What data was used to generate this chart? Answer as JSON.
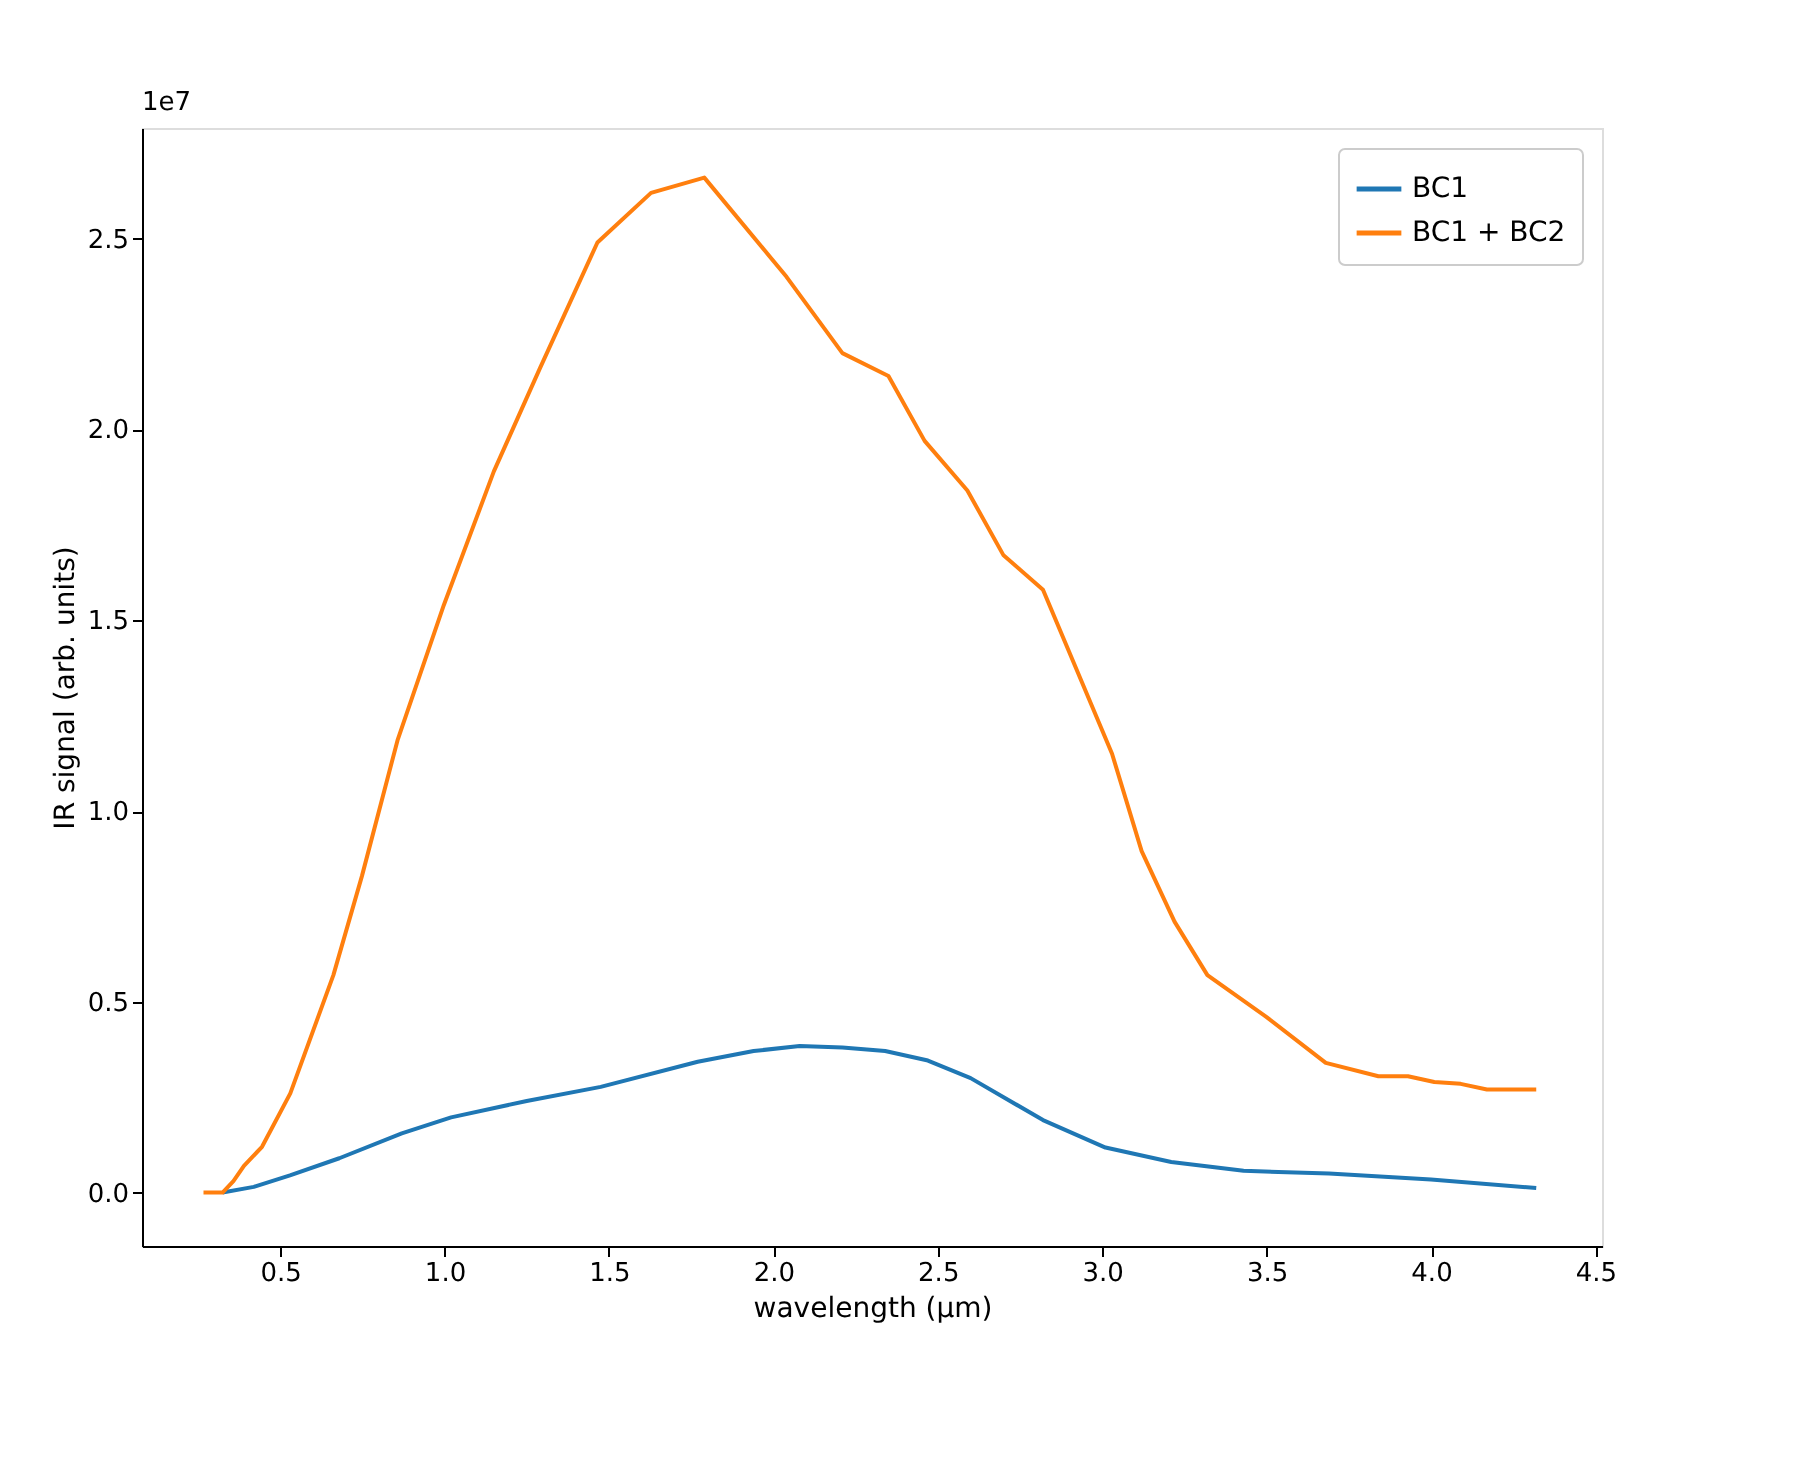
{
  "chart_data": {
    "type": "line",
    "xlabel": "wavelength (μm)",
    "ylabel": "IR signal (arb. units)",
    "annotations": [
      "1e7"
    ],
    "xlim": [
      0.08,
      4.52
    ],
    "ylim": [
      -0.14,
      2.79
    ],
    "xticks": [
      0.5,
      {
        "value": 1,
        "label": "1.0"
      },
      1.5,
      {
        "value": 2,
        "label": "2.0"
      },
      2.5,
      {
        "value": 3,
        "label": "3.0"
      },
      3.5,
      {
        "value": 4,
        "label": "4.0"
      },
      4.5
    ],
    "yticks": [
      {
        "value": 0,
        "label": "0.0"
      },
      0.5,
      {
        "value": 1,
        "label": "1.0"
      },
      1.5,
      {
        "value": 2,
        "label": "2.0"
      },
      2.5
    ],
    "grid": false,
    "legend": "top right",
    "marker": "none",
    "line_style": "solid",
    "series": [
      {
        "name": "BC1",
        "color": "#1f77b4",
        "x": [
          0.325,
          0.42,
          0.53,
          0.68,
          0.87,
          1.02,
          1.25,
          1.475,
          1.77,
          1.94,
          2.08,
          2.21,
          2.34,
          2.47,
          2.6,
          2.82,
          3.01,
          3.21,
          3.43,
          3.69,
          4.0,
          4.32
        ],
        "values": [
          0,
          0.015,
          0.045,
          0.09,
          0.155,
          0.197,
          0.24,
          0.277,
          0.343,
          0.371,
          0.384,
          0.38,
          0.371,
          0.346,
          0.3,
          0.19,
          0.118,
          0.08,
          0.057,
          0.05,
          0.034,
          0.012
        ]
      },
      {
        "name": "BC1 + BC2",
        "color": "#ff7f0e",
        "x": [
          0.267,
          0.325,
          0.358,
          0.39,
          0.445,
          0.531,
          0.662,
          0.749,
          0.857,
          0.998,
          1.15,
          1.29,
          1.465,
          1.628,
          1.79,
          2.04,
          2.21,
          2.35,
          2.46,
          2.59,
          2.7,
          2.82,
          3.03,
          3.12,
          3.22,
          3.32,
          3.5,
          3.68,
          3.84,
          3.93,
          4.01,
          4.09,
          4.17,
          4.32
        ],
        "values": [
          0,
          0,
          0.03,
          0.07,
          0.12,
          0.26,
          0.57,
          0.83,
          1.185,
          1.54,
          1.89,
          2.16,
          2.49,
          2.62,
          2.66,
          2.4,
          2.2,
          2.14,
          1.97,
          1.84,
          1.67,
          1.58,
          1.15,
          0.895,
          0.71,
          0.57,
          0.46,
          0.34,
          0.305,
          0.305,
          0.29,
          0.285,
          0.27,
          0.27
        ]
      }
    ]
  }
}
